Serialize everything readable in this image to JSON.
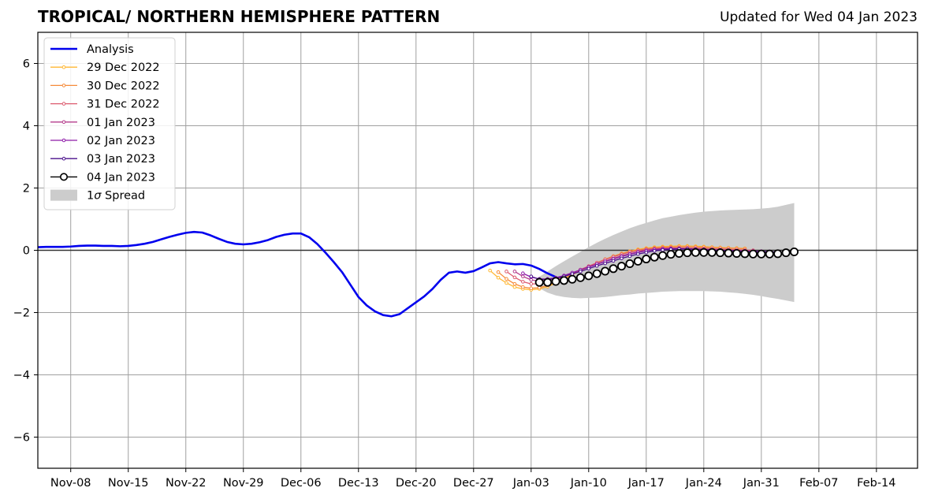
{
  "chart_data": {
    "type": "line",
    "title": "TROPICAL/ NORTHERN HEMISPHERE PATTERN",
    "subtitle": "Updated for Wed 04 Jan 2023",
    "xlabel": "",
    "ylabel": "",
    "xlim": [
      "2022-11-04",
      "2023-02-19"
    ],
    "ylim": [
      -7,
      7
    ],
    "yticks": [
      -6,
      -4,
      -2,
      0,
      2,
      4,
      6
    ],
    "ytick_labels": [
      "−6",
      "−4",
      "−2",
      "0",
      "2",
      "4",
      "6"
    ],
    "xticks": [
      "2022-11-08",
      "2022-11-15",
      "2022-11-22",
      "2022-11-29",
      "2022-12-06",
      "2022-12-13",
      "2022-12-20",
      "2022-12-27",
      "2023-01-03",
      "2023-01-10",
      "2023-01-17",
      "2023-01-24",
      "2023-01-31",
      "2023-02-07",
      "2023-02-14"
    ],
    "xtick_labels": [
      "Nov-08",
      "Nov-15",
      "Nov-22",
      "Nov-29",
      "Dec-06",
      "Dec-13",
      "Dec-20",
      "Dec-27",
      "Jan-03",
      "Jan-10",
      "Jan-17",
      "Jan-24",
      "Jan-31",
      "Feb-07",
      "Feb-14"
    ],
    "grid": true,
    "legend_position": "top-left",
    "analysis": {
      "name": "Analysis",
      "color": "#0000ee",
      "start": "2022-11-04",
      "values": [
        0.1,
        0.11,
        0.11,
        0.11,
        0.12,
        0.14,
        0.15,
        0.15,
        0.14,
        0.14,
        0.13,
        0.14,
        0.17,
        0.21,
        0.27,
        0.35,
        0.43,
        0.5,
        0.56,
        0.59,
        0.57,
        0.48,
        0.37,
        0.27,
        0.21,
        0.19,
        0.21,
        0.26,
        0.33,
        0.43,
        0.5,
        0.54,
        0.54,
        0.42,
        0.2,
        -0.08,
        -0.38,
        -0.7,
        -1.1,
        -1.5,
        -1.77,
        -1.96,
        -2.08,
        -2.12,
        -2.05,
        -1.86,
        -1.67,
        -1.48,
        -1.24,
        -0.95,
        -0.72,
        -0.68,
        -0.72,
        -0.67,
        -0.55,
        -0.42,
        -0.38,
        -0.42,
        -0.45,
        -0.44,
        -0.49,
        -0.6,
        -0.74,
        -0.86
      ]
    },
    "forecasts": [
      {
        "name": "29 Dec 2022",
        "color": "#ffb733",
        "start": "2022-12-29",
        "values": [
          -0.65,
          -0.88,
          -1.05,
          -1.18,
          -1.24,
          -1.27,
          -1.24,
          -1.17,
          -1.05,
          -0.92,
          -0.79,
          -0.66,
          -0.53,
          -0.41,
          -0.29,
          -0.19,
          -0.1,
          -0.03,
          0.03,
          0.07,
          0.1,
          0.12,
          0.13,
          0.14,
          0.14,
          0.13,
          0.12,
          0.1,
          0.09,
          0.08,
          0.07,
          0.06
        ]
      },
      {
        "name": "30 Dec 2022",
        "color": "#f68b3a",
        "start": "2022-12-30",
        "values": [
          -0.7,
          -0.92,
          -1.08,
          -1.18,
          -1.22,
          -1.2,
          -1.13,
          -1.02,
          -0.9,
          -0.77,
          -0.64,
          -0.52,
          -0.4,
          -0.29,
          -0.19,
          -0.11,
          -0.04,
          0.01,
          0.05,
          0.08,
          0.1,
          0.11,
          0.12,
          0.12,
          0.11,
          0.1,
          0.09,
          0.08,
          0.07,
          0.06,
          0.05
        ]
      },
      {
        "name": "31 Dec 2022",
        "color": "#dc5a6e",
        "start": "2022-12-31",
        "values": [
          -0.68,
          -0.87,
          -1.01,
          -1.08,
          -1.08,
          -1.03,
          -0.95,
          -0.85,
          -0.74,
          -0.62,
          -0.51,
          -0.4,
          -0.3,
          -0.21,
          -0.13,
          -0.06,
          -0.01,
          0.03,
          0.06,
          0.07,
          0.08,
          0.08,
          0.08,
          0.07,
          0.06,
          0.05,
          0.04,
          0.03,
          0.02,
          0.01,
          0.0
        ]
      },
      {
        "name": "01 Jan 2023",
        "color": "#b43d8c",
        "start": "2023-01-01",
        "values": [
          -0.68,
          -0.84,
          -0.95,
          -0.99,
          -0.96,
          -0.9,
          -0.82,
          -0.73,
          -0.63,
          -0.53,
          -0.44,
          -0.35,
          -0.26,
          -0.18,
          -0.11,
          -0.05,
          0.0,
          0.03,
          0.05,
          0.06,
          0.06,
          0.05,
          0.04,
          0.03,
          0.02,
          0.01,
          0.0,
          -0.01,
          -0.02,
          -0.03,
          -0.03
        ]
      },
      {
        "name": "02 Jan 2023",
        "color": "#8e1aa8",
        "start": "2023-01-02",
        "values": [
          -0.74,
          -0.86,
          -0.92,
          -0.92,
          -0.88,
          -0.81,
          -0.72,
          -0.63,
          -0.54,
          -0.45,
          -0.36,
          -0.28,
          -0.2,
          -0.13,
          -0.07,
          -0.02,
          0.02,
          0.04,
          0.05,
          0.05,
          0.04,
          0.03,
          0.02,
          0.01,
          0.0,
          -0.01,
          -0.02,
          -0.03,
          -0.03,
          -0.04,
          -0.04
        ]
      },
      {
        "name": "03 Jan 2023",
        "color": "#4a108c",
        "start": "2023-01-03",
        "values": [
          -0.84,
          -0.93,
          -0.94,
          -0.9,
          -0.84,
          -0.76,
          -0.68,
          -0.59,
          -0.5,
          -0.42,
          -0.34,
          -0.26,
          -0.19,
          -0.12,
          -0.07,
          -0.02,
          0.01,
          0.03,
          0.04,
          0.04,
          0.03,
          0.02,
          0.01,
          0.0,
          -0.01,
          -0.02,
          -0.03,
          -0.04,
          -0.04,
          -0.05,
          -0.05
        ]
      }
    ],
    "current": {
      "name": "04 Jan 2023",
      "color": "#000000",
      "start": "2023-01-04",
      "values": [
        -1.03,
        -1.03,
        -1.0,
        -0.97,
        -0.93,
        -0.88,
        -0.82,
        -0.75,
        -0.67,
        -0.59,
        -0.51,
        -0.43,
        -0.35,
        -0.28,
        -0.22,
        -0.17,
        -0.13,
        -0.1,
        -0.08,
        -0.07,
        -0.07,
        -0.07,
        -0.08,
        -0.09,
        -0.1,
        -0.11,
        -0.12,
        -0.12,
        -0.12,
        -0.11,
        -0.08,
        -0.05
      ]
    },
    "spread": {
      "name": "1σ Spread",
      "label_prefix": "1",
      "label_symbol": "σ",
      "label_suffix": " Spread",
      "color": "#cccccc",
      "start": "2023-01-04",
      "upper": [
        -0.85,
        -0.68,
        -0.51,
        -0.35,
        -0.2,
        -0.05,
        0.1,
        0.24,
        0.37,
        0.49,
        0.6,
        0.71,
        0.8,
        0.88,
        0.96,
        1.03,
        1.08,
        1.13,
        1.17,
        1.21,
        1.24,
        1.26,
        1.28,
        1.29,
        1.3,
        1.31,
        1.32,
        1.34,
        1.36,
        1.4,
        1.46,
        1.52
      ],
      "lower": [
        -1.22,
        -1.36,
        -1.45,
        -1.5,
        -1.53,
        -1.54,
        -1.53,
        -1.52,
        -1.5,
        -1.47,
        -1.44,
        -1.42,
        -1.39,
        -1.37,
        -1.35,
        -1.33,
        -1.32,
        -1.31,
        -1.31,
        -1.31,
        -1.31,
        -1.32,
        -1.33,
        -1.35,
        -1.37,
        -1.4,
        -1.43,
        -1.47,
        -1.52,
        -1.56,
        -1.61,
        -1.66
      ]
    }
  }
}
